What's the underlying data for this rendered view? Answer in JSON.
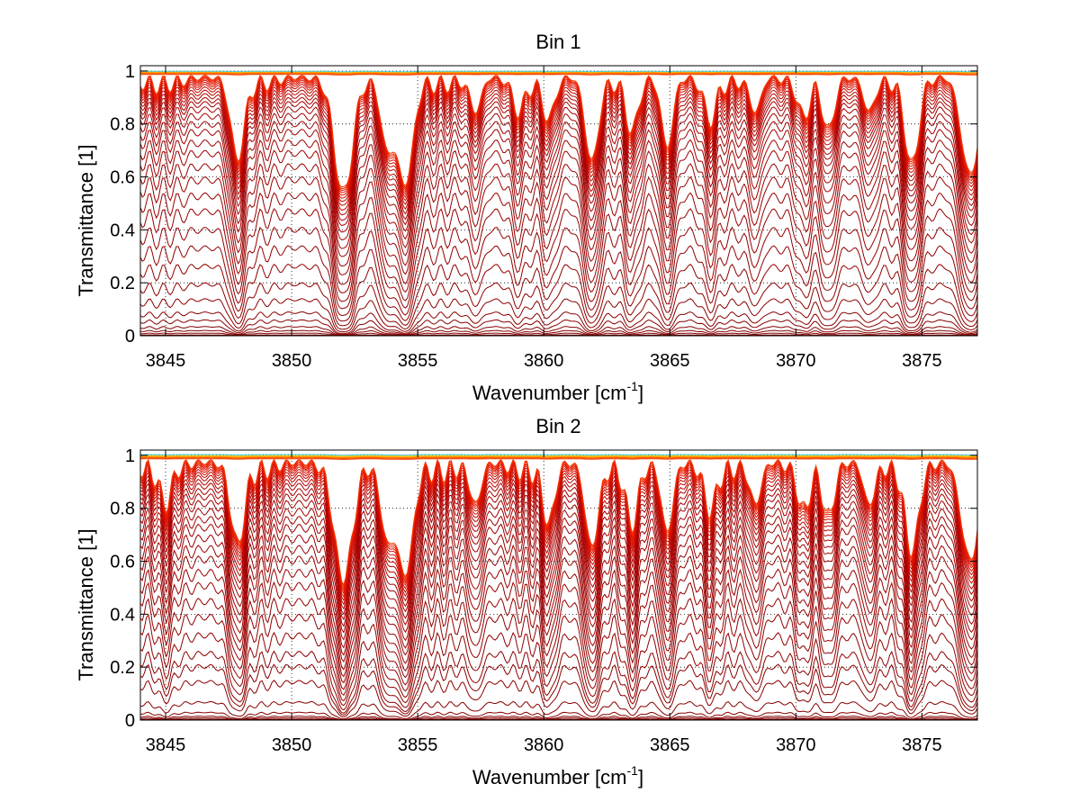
{
  "chart_data": [
    {
      "type": "line",
      "title": "Bin 1",
      "xlabel": "Wavenumber [cm",
      "xlabel_sup": "-1",
      "xlabel_suffix": "]",
      "ylabel": "Transmittance [1]",
      "xlim": [
        3844,
        3877.2
      ],
      "ylim": [
        0,
        1.02
      ],
      "xticks": [
        3845,
        3850,
        3855,
        3860,
        3865,
        3870,
        3875
      ],
      "xtick_labels": [
        "3845",
        "3850",
        "3855",
        "3860",
        "3865",
        "3870",
        "3875"
      ],
      "yticks": [
        0,
        0.2,
        0.4,
        0.6,
        0.8,
        1
      ],
      "ytick_labels": [
        "0",
        "0.2",
        "0.4",
        "0.6",
        "0.8",
        "1"
      ],
      "grid": "dotted",
      "series_count": 40,
      "series_baselines": [
        0.003,
        0.01,
        0.02,
        0.035,
        0.06,
        0.09,
        0.14,
        0.2,
        0.27,
        0.34,
        0.41,
        0.48,
        0.54,
        0.6,
        0.65,
        0.7,
        0.74,
        0.78,
        0.81,
        0.84,
        0.865,
        0.885,
        0.9,
        0.915,
        0.928,
        0.94,
        0.95,
        0.958,
        0.965,
        0.971,
        0.976,
        0.98,
        0.984,
        0.987,
        0.99,
        0.992,
        0.994,
        0.996,
        0.998,
        0.999
      ],
      "absorption_lines": [
        {
          "x": 3847.85,
          "depth": 1.0,
          "width": 0.35
        },
        {
          "x": 3852.05,
          "depth": 1.6,
          "width": 0.45
        },
        {
          "x": 3853.8,
          "depth": 0.9,
          "width": 0.35
        },
        {
          "x": 3854.5,
          "depth": 1.5,
          "width": 0.4
        },
        {
          "x": 3857.3,
          "depth": 0.4,
          "width": 0.3
        },
        {
          "x": 3859.0,
          "depth": 0.35,
          "width": 0.3
        },
        {
          "x": 3860.2,
          "depth": 0.45,
          "width": 0.3
        },
        {
          "x": 3861.9,
          "depth": 1.1,
          "width": 0.35
        },
        {
          "x": 3863.5,
          "depth": 0.6,
          "width": 0.3
        },
        {
          "x": 3864.9,
          "depth": 0.9,
          "width": 0.3
        },
        {
          "x": 3866.6,
          "depth": 0.45,
          "width": 0.3
        },
        {
          "x": 3868.4,
          "depth": 0.4,
          "width": 0.3
        },
        {
          "x": 3870.3,
          "depth": 0.4,
          "width": 0.3
        },
        {
          "x": 3871.3,
          "depth": 0.6,
          "width": 0.3
        },
        {
          "x": 3872.9,
          "depth": 0.4,
          "width": 0.3
        },
        {
          "x": 3874.6,
          "depth": 1.1,
          "width": 0.35
        },
        {
          "x": 3876.9,
          "depth": 1.3,
          "width": 0.45
        }
      ],
      "ripple_amplitude": 0.22,
      "ripple_period": 0.55
    },
    {
      "type": "line",
      "title": "Bin 2",
      "xlabel": "Wavenumber [cm",
      "xlabel_sup": "-1",
      "xlabel_suffix": "]",
      "ylabel": "Transmittance [1]",
      "xlim": [
        3844,
        3877.2
      ],
      "ylim": [
        0,
        1.02
      ],
      "xticks": [
        3845,
        3850,
        3855,
        3860,
        3865,
        3870,
        3875
      ],
      "xtick_labels": [
        "3845",
        "3850",
        "3855",
        "3860",
        "3865",
        "3870",
        "3875"
      ],
      "yticks": [
        0,
        0.2,
        0.4,
        0.6,
        0.8,
        1
      ],
      "ytick_labels": [
        "0",
        "0.2",
        "0.4",
        "0.6",
        "0.8",
        "1"
      ],
      "grid": "dotted",
      "series_count": 40,
      "series_baselines": [
        0.003,
        0.008,
        0.015,
        0.03,
        0.07,
        0.15,
        0.21,
        0.26,
        0.33,
        0.4,
        0.46,
        0.52,
        0.57,
        0.62,
        0.66,
        0.7,
        0.74,
        0.77,
        0.8,
        0.83,
        0.855,
        0.875,
        0.895,
        0.91,
        0.925,
        0.937,
        0.947,
        0.956,
        0.964,
        0.97,
        0.975,
        0.98,
        0.984,
        0.987,
        0.99,
        0.993,
        0.995,
        0.997,
        0.999,
        1.003
      ],
      "absorption_lines": [
        {
          "x": 3845.0,
          "depth": 0.4,
          "width": 0.3
        },
        {
          "x": 3847.85,
          "depth": 1.0,
          "width": 0.35
        },
        {
          "x": 3852.05,
          "depth": 1.6,
          "width": 0.45
        },
        {
          "x": 3853.8,
          "depth": 1.0,
          "width": 0.35
        },
        {
          "x": 3854.5,
          "depth": 1.6,
          "width": 0.4
        },
        {
          "x": 3857.3,
          "depth": 0.5,
          "width": 0.3
        },
        {
          "x": 3860.2,
          "depth": 0.7,
          "width": 0.3
        },
        {
          "x": 3861.9,
          "depth": 1.1,
          "width": 0.35
        },
        {
          "x": 3863.5,
          "depth": 0.7,
          "width": 0.3
        },
        {
          "x": 3864.9,
          "depth": 0.9,
          "width": 0.3
        },
        {
          "x": 3866.6,
          "depth": 0.5,
          "width": 0.3
        },
        {
          "x": 3868.4,
          "depth": 0.5,
          "width": 0.3
        },
        {
          "x": 3870.3,
          "depth": 0.5,
          "width": 0.3
        },
        {
          "x": 3871.3,
          "depth": 0.6,
          "width": 0.3
        },
        {
          "x": 3872.9,
          "depth": 0.5,
          "width": 0.3
        },
        {
          "x": 3874.6,
          "depth": 1.1,
          "width": 0.35
        },
        {
          "x": 3876.9,
          "depth": 1.3,
          "width": 0.45
        }
      ],
      "ripple_amplitude": 0.28,
      "ripple_period": 0.5
    }
  ]
}
